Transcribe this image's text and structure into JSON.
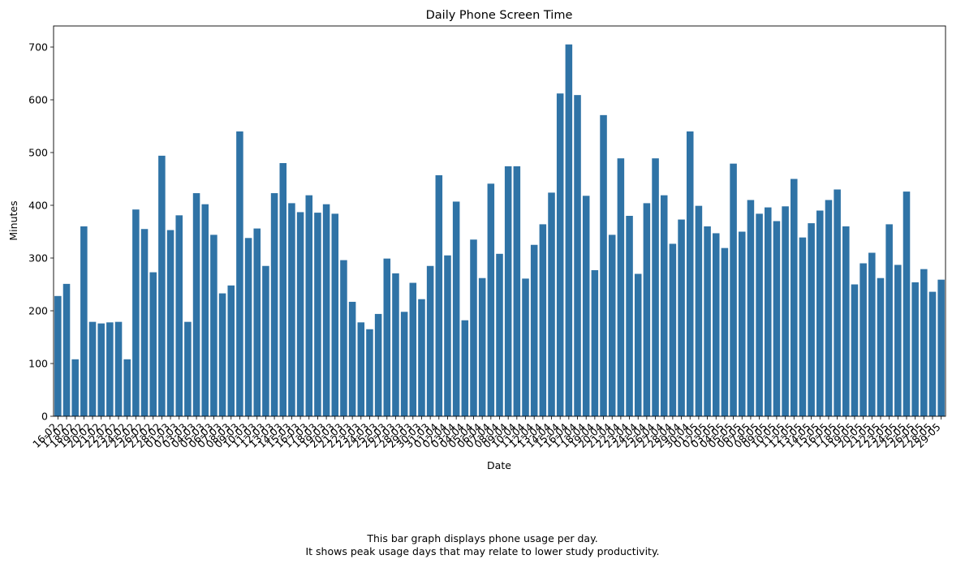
{
  "chart_data": {
    "type": "bar",
    "title": "Daily Phone Screen Time",
    "xlabel": "Date",
    "ylabel": "Minutes",
    "ylim": [
      0,
      740
    ],
    "yticks": [
      0,
      100,
      200,
      300,
      400,
      500,
      600,
      700
    ],
    "grid": false,
    "color": "#2f73a6",
    "categories": [
      "16-02",
      "17-02",
      "18-02",
      "19-02",
      "20-02",
      "21-02",
      "22-02",
      "23-02",
      "24-02",
      "25-02",
      "26-02",
      "27-02",
      "28-02",
      "01-03",
      "02-03",
      "03-03",
      "04-03",
      "05-03",
      "06-03",
      "07-03",
      "08-03",
      "09-03",
      "10-03",
      "11-03",
      "12-03",
      "13-03",
      "14-03",
      "15-03",
      "16-03",
      "17-03",
      "18-03",
      "19-03",
      "20-03",
      "21-03",
      "22-03",
      "23-03",
      "24-03",
      "25-03",
      "26-03",
      "27-03",
      "28-03",
      "29-03",
      "30-03",
      "31-03",
      "01-04",
      "02-04",
      "03-04",
      "04-04",
      "05-04",
      "06-04",
      "07-04",
      "08-04",
      "09-04",
      "10-04",
      "11-04",
      "12-04",
      "13-04",
      "14-04",
      "15-04",
      "16-04",
      "17-04",
      "18-04",
      "19-04",
      "20-04",
      "21-04",
      "22-04",
      "23-04",
      "24-04",
      "25-04",
      "26-04",
      "27-04",
      "28-04",
      "29-04",
      "30-04",
      "01-05",
      "02-05",
      "03-05",
      "04-05",
      "05-05",
      "06-05",
      "07-05",
      "08-05",
      "09-05",
      "10-05",
      "11-05",
      "12-05",
      "13-05",
      "14-05",
      "15-05",
      "16-05",
      "17-05",
      "18-05",
      "19-05",
      "20-05",
      "21-05",
      "22-05",
      "23-05",
      "24-05",
      "25-05",
      "26-05",
      "27-05",
      "28-05",
      "29-05"
    ],
    "values": [
      228,
      251,
      108,
      360,
      179,
      176,
      178,
      179,
      108,
      392,
      355,
      273,
      494,
      353,
      381,
      179,
      423,
      402,
      344,
      233,
      248,
      540,
      338,
      356,
      285,
      423,
      480,
      404,
      387,
      419,
      386,
      402,
      384,
      296,
      217,
      178,
      165,
      194,
      299,
      271,
      198,
      253,
      222,
      285,
      457,
      305,
      407,
      182,
      335,
      262,
      441,
      308,
      474,
      474,
      261,
      325,
      364,
      424,
      612,
      705,
      609,
      418,
      277,
      571,
      344,
      489,
      380,
      270,
      404,
      489,
      419,
      327,
      373,
      540,
      399,
      360,
      347,
      319,
      479,
      350,
      410,
      384,
      396,
      370,
      398,
      450,
      339,
      366,
      390,
      410,
      430,
      360,
      250,
      290,
      310,
      262,
      364,
      287,
      426,
      254,
      279,
      236,
      259
    ]
  },
  "caption": {
    "line1": "This bar graph displays phone usage per day.",
    "line2": "It shows peak usage days that may relate to lower study productivity."
  }
}
